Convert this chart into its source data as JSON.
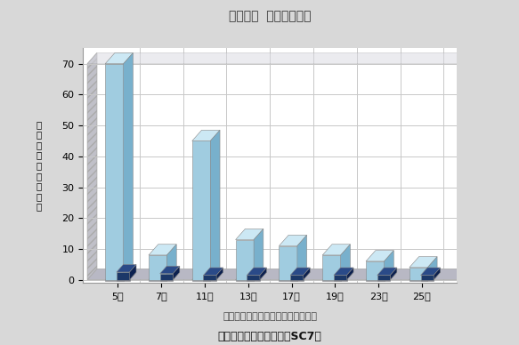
{
  "title": "回路種別  高調波発生量",
  "categories": [
    "5次",
    "7次",
    "11次",
    "13次",
    "17次",
    "19次",
    "23次",
    "25次"
  ],
  "series1_values": [
    70,
    8,
    45,
    13,
    11,
    8,
    6,
    4
  ],
  "series2_values": [
    2.5,
    2,
    1.5,
    1.5,
    1.5,
    1.5,
    1.5,
    1.5
  ],
  "ylabel": "高\n調\n波\n発\n生\n率\n（\n％\n）",
  "ylim": [
    0,
    70
  ],
  "yticks": [
    0,
    10,
    20,
    30,
    40,
    50,
    60,
    70
  ],
  "background_color": "#d8d8d8",
  "plot_bg_color": "#ffffff",
  "bar1_front": "#a0cce0",
  "bar1_top": "#cce8f4",
  "bar1_side": "#78b0cc",
  "bar2_front": "#1c3868",
  "bar2_top": "#2a4a88",
  "bar2_side": "#0c2050",
  "grid_color": "#c8c8c8",
  "wall_left_color": "#b0b0b8",
  "floor_color": "#b8b8c4",
  "floor_tile_light": "#c8c8d0",
  "floor_tile_dark": "#a8a8b4",
  "subtitle1": "インバータ単体（リアクトルなし）",
  "subtitle2": "高調波抑制ユニット　＜SC7＞"
}
